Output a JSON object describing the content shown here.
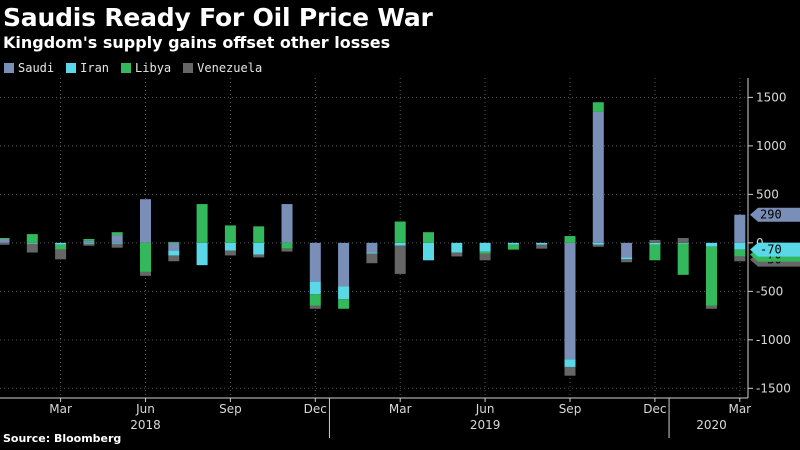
{
  "chart_data": {
    "type": "bar",
    "stacked": true,
    "title": "Saudis Ready For Oil Price War",
    "subtitle": "Kingdom's supply gains offset other losses",
    "source": "Source: Bloomberg",
    "colors": {
      "Saudi": "#7a8fb8",
      "Iran": "#5ad8e8",
      "Libya": "#33b85c",
      "Venezuela": "#666666"
    },
    "x": [
      "2018-01",
      "2018-02",
      "2018-03",
      "2018-04",
      "2018-05",
      "2018-06",
      "2018-07",
      "2018-08",
      "2018-09",
      "2018-10",
      "2018-11",
      "2018-12",
      "2019-01",
      "2019-02",
      "2019-03",
      "2019-04",
      "2019-05",
      "2019-06",
      "2019-07",
      "2019-08",
      "2019-09",
      "2019-10",
      "2019-11",
      "2019-12",
      "2020-01",
      "2020-02",
      "2020-03"
    ],
    "series": [
      {
        "name": "Saudi",
        "values": [
          40,
          0,
          0,
          20,
          80,
          450,
          -80,
          0,
          0,
          0,
          400,
          -400,
          -450,
          -100,
          0,
          0,
          0,
          0,
          0,
          0,
          -1200,
          1350,
          -150,
          0,
          0,
          0,
          290
        ]
      },
      {
        "name": "Iran",
        "values": [
          0,
          -10,
          -20,
          -10,
          -10,
          0,
          -50,
          -230,
          -80,
          -120,
          0,
          -130,
          -130,
          -10,
          -30,
          -180,
          -100,
          -90,
          -20,
          -20,
          -80,
          -20,
          -20,
          -20,
          -10,
          -40,
          -70
        ]
      },
      {
        "name": "Libya",
        "values": [
          10,
          90,
          -50,
          20,
          30,
          -300,
          10,
          400,
          180,
          170,
          -60,
          -120,
          -100,
          0,
          220,
          110,
          0,
          -20,
          -50,
          0,
          70,
          100,
          0,
          -160,
          -320,
          -610,
          -70
        ]
      },
      {
        "name": "Venezuela",
        "values": [
          -20,
          -90,
          -100,
          -20,
          -40,
          -40,
          -60,
          0,
          -50,
          -30,
          -30,
          -30,
          0,
          -100,
          -290,
          0,
          -40,
          -70,
          0,
          -40,
          -90,
          -20,
          -30,
          30,
          50,
          -30,
          -50
        ]
      }
    ],
    "ylim": [
      -1600,
      1700
    ],
    "yticks": [
      1500,
      1000,
      500,
      0,
      -500,
      -1000,
      -1500
    ],
    "ytick_labels": [
      "1500",
      "1000",
      "500",
      "0",
      "-500",
      "-1000",
      "-1500"
    ],
    "xtick_labels": [
      {
        "x": "2018-03",
        "label": "Mar"
      },
      {
        "x": "2018-06",
        "label": "Jun"
      },
      {
        "x": "2018-09",
        "label": "Sep"
      },
      {
        "x": "2018-12",
        "label": "Dec"
      },
      {
        "x": "2019-03",
        "label": "Mar"
      },
      {
        "x": "2019-06",
        "label": "Jun"
      },
      {
        "x": "2019-09",
        "label": "Sep"
      },
      {
        "x": "2019-12",
        "label": "Dec"
      },
      {
        "x": "2020-03",
        "label": "Mar"
      }
    ],
    "year_labels": [
      {
        "x": "2018-06",
        "label": "2018"
      },
      {
        "x": "2019-06",
        "label": "2019"
      },
      {
        "x": "2020-02",
        "label": "2020"
      }
    ],
    "year_dividers": [
      "2018-12/2019-01",
      "2019-12/2020-01"
    ],
    "value_tags": [
      {
        "series": "Saudi",
        "label": "290"
      },
      {
        "series": "Iran",
        "label": "-70"
      },
      {
        "series": "Libya",
        "label": "-70"
      },
      {
        "series": "Venezuela",
        "label": "-50"
      }
    ],
    "grid": true,
    "legend": "top-left"
  }
}
